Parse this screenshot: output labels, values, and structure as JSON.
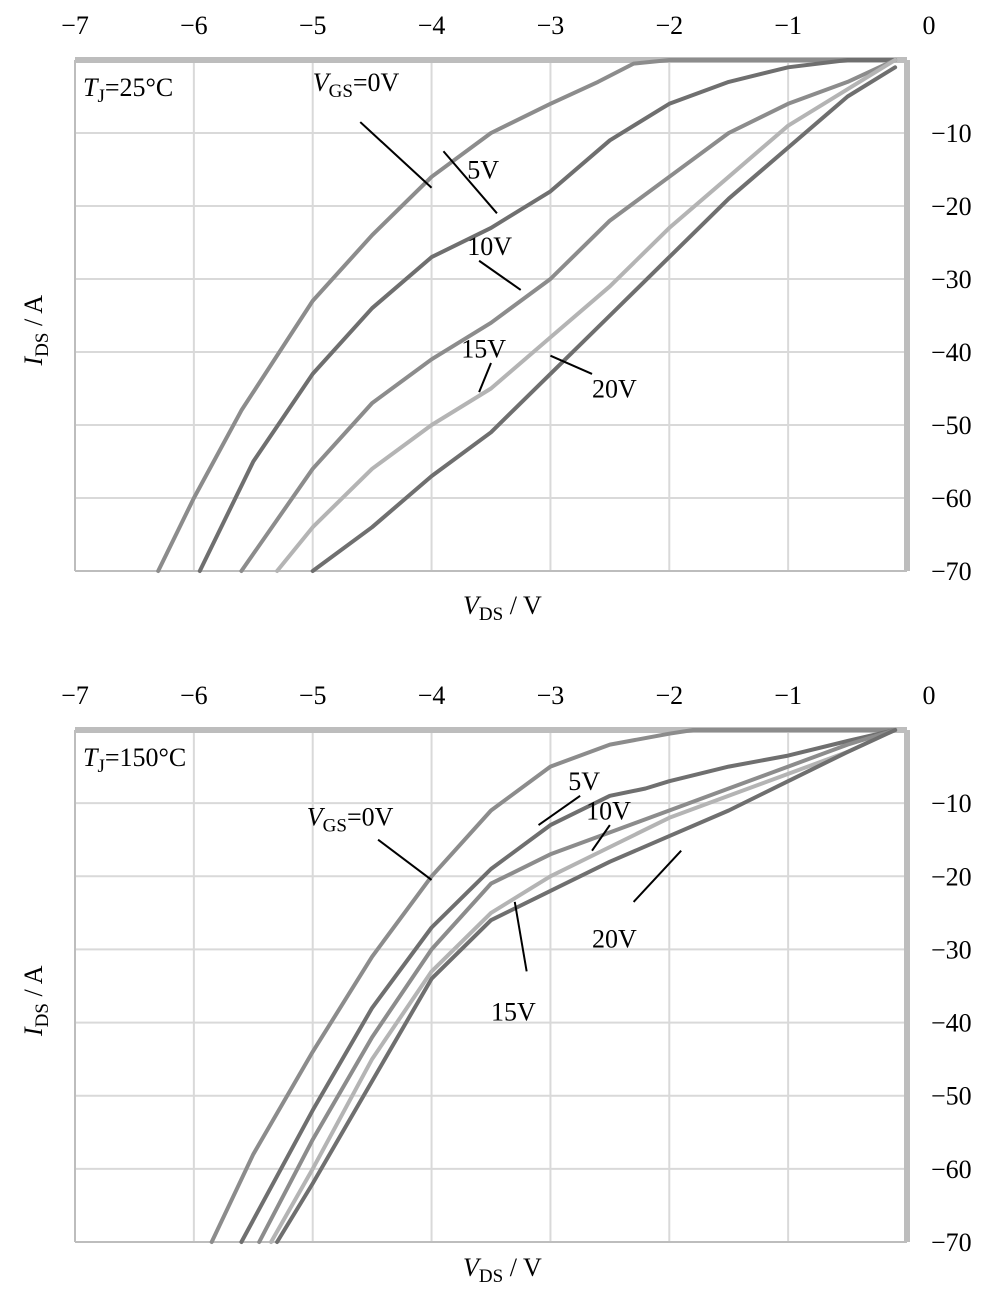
{
  "colors": {
    "series_dark": "#6f6f6f",
    "series_mid": "#8c8c8c",
    "series_light": "#b4b4b4",
    "axis": "#bdbdbd",
    "grid": "#d9d9d9"
  },
  "chart_data": [
    {
      "type": "line",
      "title": "",
      "annotation": {
        "italic": "T",
        "sub": "J",
        "rest": "=25°C"
      },
      "xlabel": {
        "italic": "V",
        "sub": "DS",
        "rest": " / V"
      },
      "ylabel": {
        "italic": "I",
        "sub": "DS",
        "rest": " / A"
      },
      "xlim": [
        -7,
        0
      ],
      "ylim": [
        -70,
        0
      ],
      "xticks": [
        "−7",
        "−6",
        "−5",
        "−4",
        "−3",
        "−2",
        "−1",
        "0"
      ],
      "yticks": [
        "−10",
        "−20",
        "−30",
        "−40",
        "−50",
        "−60",
        "−70"
      ],
      "grid": true,
      "series": [
        {
          "name": "VGS=0V",
          "color": "#8c8c8c",
          "x": [
            -6.3,
            -6.0,
            -5.6,
            -5.0,
            -4.5,
            -4.0,
            -3.5,
            -3.0,
            -2.6,
            -2.3,
            -2.0,
            -1.5,
            -1.0,
            -0.5,
            -0.1
          ],
          "y": [
            -70,
            -60,
            -48,
            -33,
            -24,
            -16,
            -10,
            -6,
            -3,
            -0.5,
            0,
            0,
            0,
            0,
            0
          ]
        },
        {
          "name": "5V",
          "color": "#6f6f6f",
          "x": [
            -5.95,
            -5.5,
            -5.0,
            -4.5,
            -4.0,
            -3.5,
            -3.0,
            -2.5,
            -2.0,
            -1.5,
            -1.0,
            -0.5,
            -0.1
          ],
          "y": [
            -70,
            -55,
            -43,
            -34,
            -27,
            -23,
            -18,
            -11,
            -6,
            -3,
            -1,
            0,
            0
          ]
        },
        {
          "name": "10V",
          "color": "#8c8c8c",
          "x": [
            -5.6,
            -5.0,
            -4.5,
            -4.0,
            -3.5,
            -3.0,
            -2.5,
            -2.0,
            -1.5,
            -1.0,
            -0.5,
            -0.1
          ],
          "y": [
            -70,
            -56,
            -47,
            -41,
            -36,
            -30,
            -22,
            -16,
            -10,
            -6,
            -3,
            0
          ]
        },
        {
          "name": "15V",
          "color": "#b4b4b4",
          "x": [
            -5.3,
            -5.0,
            -4.5,
            -4.0,
            -3.5,
            -3.0,
            -2.5,
            -2.0,
            -1.5,
            -1.0,
            -0.5,
            -0.1
          ],
          "y": [
            -70,
            -64,
            -56,
            -50,
            -45,
            -38,
            -31,
            -23,
            -16,
            -9,
            -4,
            0
          ]
        },
        {
          "name": "20V",
          "color": "#6f6f6f",
          "x": [
            -5.0,
            -4.5,
            -4.0,
            -3.5,
            -3.0,
            -2.5,
            -2.0,
            -1.5,
            -1.0,
            -0.5,
            -0.1
          ],
          "y": [
            -70,
            -64,
            -57,
            -51,
            -43,
            -35,
            -27,
            -19,
            -12,
            -5,
            -1
          ]
        }
      ],
      "labels": [
        {
          "text": "",
          "parts": {
            "italic": "V",
            "sub": "GS",
            "rest": "=0V"
          },
          "x": -5.0,
          "y": -3.0,
          "tx": -4.0,
          "ty": -17.5,
          "lx": -4.6,
          "ly": -8.5
        },
        {
          "text": "5V",
          "x": -3.7,
          "y": -15.0,
          "tx": -3.45,
          "ty": -21.0,
          "lx": -3.9,
          "ly": -12.5
        },
        {
          "text": "10V",
          "x": -3.7,
          "y": -25.5,
          "tx": -3.25,
          "ty": -31.5,
          "lx": -3.6,
          "ly": -27.5
        },
        {
          "text": "15V",
          "x": -3.75,
          "y": -39.5,
          "tx": -3.6,
          "ty": -45.5,
          "lx": -3.5,
          "ly": -41.5
        },
        {
          "text": "20V",
          "x": -2.65,
          "y": -45.0,
          "tx": -3.0,
          "ty": -40.5,
          "lx": -2.65,
          "ly": -43.0
        }
      ]
    },
    {
      "type": "line",
      "title": "",
      "annotation": {
        "italic": "T",
        "sub": "J",
        "rest": "=150°C"
      },
      "xlabel": {
        "italic": "V",
        "sub": "DS",
        "rest": " / V"
      },
      "ylabel": {
        "italic": "I",
        "sub": "DS",
        "rest": " / A"
      },
      "xlim": [
        -7,
        0
      ],
      "ylim": [
        -70,
        0
      ],
      "xticks": [
        "−7",
        "−6",
        "−5",
        "−4",
        "−3",
        "−2",
        "−1",
        "0"
      ],
      "yticks": [
        "−10",
        "−20",
        "−30",
        "−40",
        "−50",
        "−60",
        "−70"
      ],
      "grid": true,
      "series": [
        {
          "name": "VGS=0V",
          "color": "#8c8c8c",
          "x": [
            -5.85,
            -5.5,
            -5.0,
            -4.5,
            -4.0,
            -3.5,
            -3.0,
            -2.5,
            -2.0,
            -1.8,
            -1.5,
            -1.0,
            -0.5,
            -0.1
          ],
          "y": [
            -70,
            -58,
            -44,
            -31,
            -20,
            -11,
            -5,
            -2,
            -0.5,
            0,
            0,
            0,
            0,
            0
          ]
        },
        {
          "name": "5V",
          "color": "#6f6f6f",
          "x": [
            -5.6,
            -5.0,
            -4.5,
            -4.0,
            -3.5,
            -3.0,
            -2.5,
            -2.2,
            -2.0,
            -1.5,
            -1.0,
            -0.5,
            -0.1
          ],
          "y": [
            -70,
            -52,
            -38,
            -27,
            -19,
            -13,
            -9,
            -8,
            -7,
            -5,
            -3.5,
            -1.5,
            0
          ]
        },
        {
          "name": "10V",
          "color": "#8c8c8c",
          "x": [
            -5.45,
            -5.0,
            -4.5,
            -4.0,
            -3.5,
            -3.0,
            -2.5,
            -2.0,
            -1.5,
            -1.0,
            -0.5,
            -0.1
          ],
          "y": [
            -70,
            -56,
            -42,
            -30,
            -21,
            -17,
            -14,
            -11,
            -8,
            -5,
            -2,
            0
          ]
        },
        {
          "name": "15V",
          "color": "#b4b4b4",
          "x": [
            -5.35,
            -5.0,
            -4.5,
            -4.0,
            -3.5,
            -3.0,
            -2.5,
            -2.0,
            -1.5,
            -1.0,
            -0.5,
            -0.1
          ],
          "y": [
            -70,
            -60,
            -45,
            -33,
            -25,
            -20,
            -16,
            -12,
            -9,
            -6,
            -3,
            0
          ]
        },
        {
          "name": "20V",
          "color": "#6f6f6f",
          "x": [
            -5.3,
            -5.0,
            -4.5,
            -4.0,
            -3.5,
            -3.0,
            -2.5,
            -2.0,
            -1.5,
            -1.0,
            -0.5,
            -0.1
          ],
          "y": [
            -70,
            -62,
            -48,
            -34,
            -26,
            -22,
            -18,
            -14.5,
            -11,
            -7,
            -3,
            0
          ]
        }
      ],
      "labels": [
        {
          "text": "",
          "parts": {
            "italic": "V",
            "sub": "GS",
            "rest": "=0V"
          },
          "x": -5.05,
          "y": -11.8,
          "tx": -4.0,
          "ty": -20.5,
          "lx": -4.45,
          "ly": -15.0
        },
        {
          "text": "5V",
          "x": -2.85,
          "y": -7.0,
          "tx": -3.1,
          "ty": -13.0,
          "lx": -2.75,
          "ly": -9.0
        },
        {
          "text": "10V",
          "x": -2.7,
          "y": -11.0,
          "tx": -2.65,
          "ty": -16.5,
          "lx": -2.5,
          "ly": -13.0
        },
        {
          "text": "20V",
          "x": -2.65,
          "y": -28.5,
          "tx": -1.9,
          "ty": -16.5,
          "lx": -2.3,
          "ly": -23.5
        },
        {
          "text": "15V",
          "x": -3.5,
          "y": -38.5,
          "tx": -3.3,
          "ty": -23.5,
          "lx": -3.2,
          "ly": -33.0
        }
      ]
    }
  ]
}
